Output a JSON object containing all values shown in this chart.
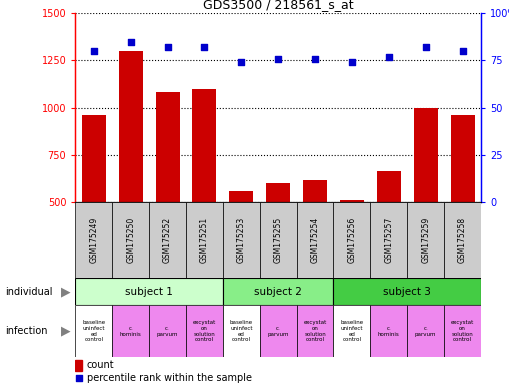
{
  "title": "GDS3500 / 218561_s_at",
  "samples": [
    "GSM175249",
    "GSM175250",
    "GSM175252",
    "GSM175251",
    "GSM175253",
    "GSM175255",
    "GSM175254",
    "GSM175256",
    "GSM175257",
    "GSM175259",
    "GSM175258"
  ],
  "counts": [
    960,
    1300,
    1080,
    1100,
    555,
    600,
    615,
    510,
    660,
    1000,
    960
  ],
  "percentile_ranks": [
    80,
    85,
    82,
    82,
    74,
    76,
    76,
    74,
    77,
    82,
    80
  ],
  "ylim_left": [
    500,
    1500
  ],
  "ylim_right": [
    0,
    100
  ],
  "yticks_left": [
    500,
    750,
    1000,
    1250,
    1500
  ],
  "yticks_right": [
    0,
    25,
    50,
    75,
    100
  ],
  "bar_color": "#cc0000",
  "dot_color": "#0000cc",
  "subjects": [
    {
      "label": "subject 1",
      "start": 0,
      "end": 4,
      "color": "#ccffcc"
    },
    {
      "label": "subject 2",
      "start": 4,
      "end": 7,
      "color": "#88ee88"
    },
    {
      "label": "subject 3",
      "start": 7,
      "end": 11,
      "color": "#44cc44"
    }
  ],
  "infections": [
    {
      "label": "baseline\nuninfect\ned\ncontrol",
      "color": "#ffffff",
      "col": 0
    },
    {
      "label": "c.\nhominis",
      "color": "#ee88ee",
      "col": 1
    },
    {
      "label": "c.\nparvum",
      "color": "#ee88ee",
      "col": 2
    },
    {
      "label": "excystat\non\nsolution\ncontrol",
      "color": "#ee88ee",
      "col": 3
    },
    {
      "label": "baseline\nuninfect\ned\ncontrol",
      "color": "#ffffff",
      "col": 4
    },
    {
      "label": "c.\nparvum",
      "color": "#ee88ee",
      "col": 5
    },
    {
      "label": "excystat\non\nsolution\ncontrol",
      "color": "#ee88ee",
      "col": 6
    },
    {
      "label": "baseline\nuninfect\ned\ncontrol",
      "color": "#ffffff",
      "col": 7
    },
    {
      "label": "c.\nhominis",
      "color": "#ee88ee",
      "col": 8
    },
    {
      "label": "c.\nparvum",
      "color": "#ee88ee",
      "col": 9
    },
    {
      "label": "excystat\non\nsolution\ncontrol",
      "color": "#ee88ee",
      "col": 10
    }
  ],
  "gsm_bg_color": "#cccccc",
  "individual_label": "individual",
  "infection_label": "infection",
  "legend_count_label": "count",
  "legend_pct_label": "percentile rank within the sample",
  "fig_width": 5.09,
  "fig_height": 3.84,
  "fig_dpi": 100
}
